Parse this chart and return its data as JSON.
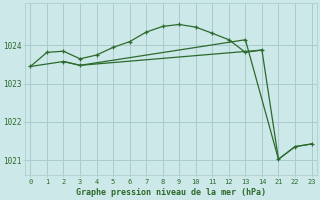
{
  "bg_color": "#cce8e8",
  "grid_color": "#aacccc",
  "line_color": "#2d6a2d",
  "title": "Graphe pression niveau de la mer (hPa)",
  "title_color": "#2d6a2d",
  "ylim": [
    1020.6,
    1025.1
  ],
  "yticks": [
    1021,
    1022,
    1023,
    1024
  ],
  "xlim": [
    -0.3,
    17.3
  ],
  "xtick_positions": [
    0,
    1,
    2,
    3,
    4,
    5,
    6,
    7,
    8,
    9,
    10,
    11,
    12,
    13,
    14,
    15,
    16,
    17
  ],
  "xtick_labels": [
    "0",
    "1",
    "2",
    "3",
    "4",
    "5",
    "6",
    "7",
    "8",
    "9",
    "10",
    "11",
    "12",
    "13",
    "14",
    "21",
    "22",
    "23"
  ],
  "series1_x": [
    0,
    1,
    2,
    3,
    4,
    5,
    6,
    7,
    8,
    9,
    10,
    11,
    12,
    13,
    14
  ],
  "series1_y": [
    1023.45,
    1023.82,
    1023.85,
    1023.65,
    1023.75,
    1023.95,
    1024.1,
    1024.35,
    1024.5,
    1024.55,
    1024.48,
    1024.32,
    1024.15,
    1023.82,
    1023.88
  ],
  "series2_x": [
    0,
    2,
    3,
    14,
    15,
    16,
    17
  ],
  "series2_y": [
    1023.45,
    1023.58,
    1023.48,
    1023.88,
    1021.02,
    1021.35,
    1021.42
  ],
  "series3_x": [
    2,
    3,
    13,
    15,
    16,
    17
  ],
  "series3_y": [
    1023.58,
    1023.48,
    1024.15,
    1021.02,
    1021.35,
    1021.42
  ]
}
